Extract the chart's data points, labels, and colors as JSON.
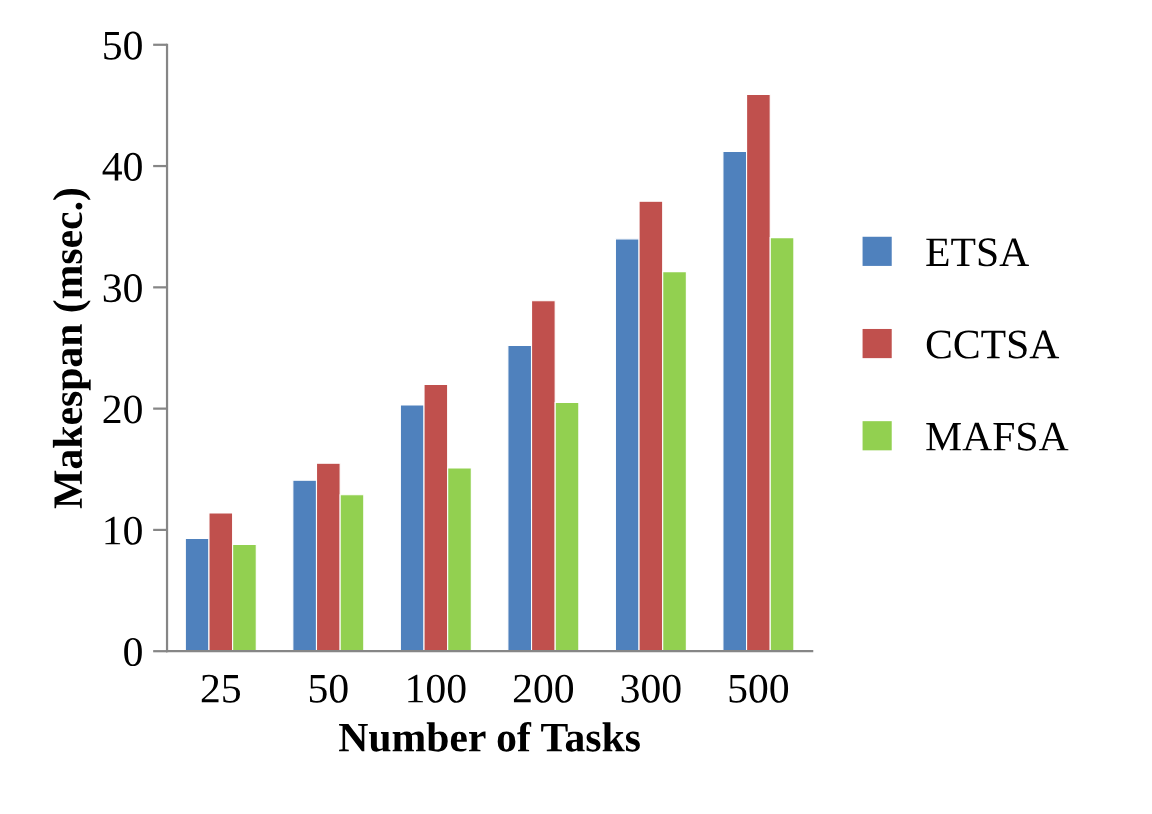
{
  "chart_data": {
    "type": "bar",
    "xlabel": "Number of Tasks",
    "ylabel": "Makespan (msec.)",
    "categories": [
      "25",
      "50",
      "100",
      "200",
      "300",
      "500"
    ],
    "series": [
      {
        "name": "ETSA",
        "color": "#4f81bd",
        "values": [
          9.3,
          14.1,
          20.3,
          25.2,
          34.0,
          41.2
        ]
      },
      {
        "name": "CCTSA",
        "color": "#c0504d",
        "values": [
          11.4,
          15.5,
          22.0,
          28.9,
          37.1,
          45.9
        ]
      },
      {
        "name": "MAFSA",
        "color": "#92d050",
        "values": [
          8.8,
          12.9,
          15.1,
          20.5,
          31.3,
          34.1
        ]
      }
    ],
    "ylim": [
      0,
      50
    ],
    "yticks": [
      0,
      10,
      20,
      30,
      40,
      50
    ],
    "grid": false,
    "legend": "right"
  }
}
